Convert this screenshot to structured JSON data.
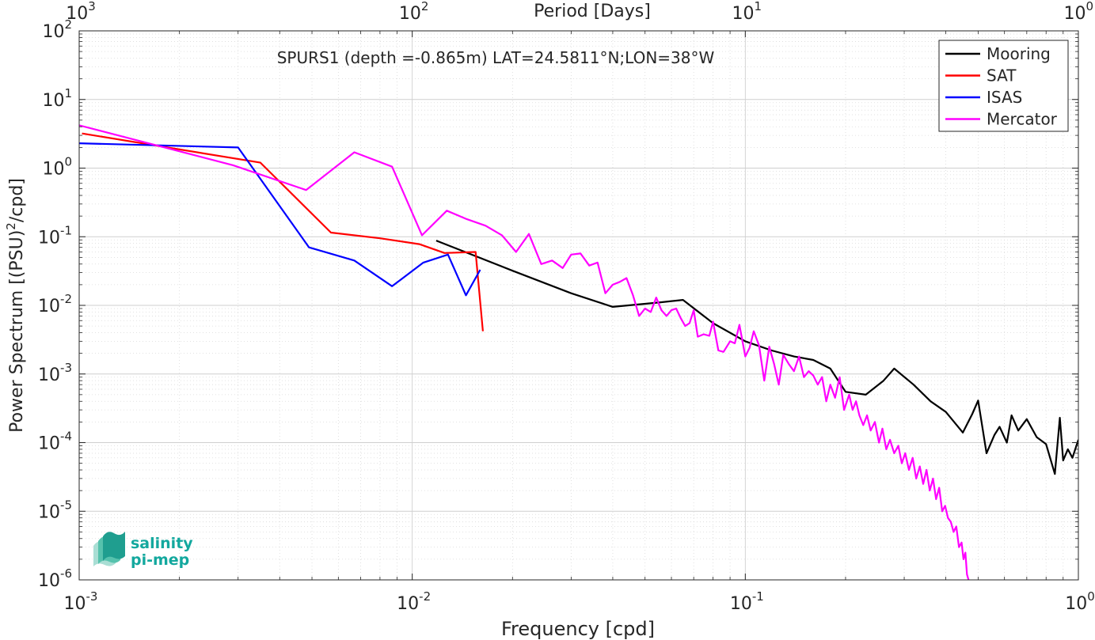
{
  "chart_data": {
    "type": "line",
    "title": "SPURS1 (depth =-0.865m) LAT=24.5811°N;LON=38°W",
    "xlabel": "Frequency [cpd]",
    "ylabel": "Power Spectrum [(PSU)²/cpd]",
    "ylabel_main": "Power Spectrum [(PSU)",
    "ylabel_sup": "2",
    "ylabel_tail": "/cpd]",
    "top_xlabel": "Period [Days]",
    "xscale": "log",
    "yscale": "log",
    "xlim": [
      0.001,
      1
    ],
    "ylim": [
      1e-06,
      100
    ],
    "grid": true,
    "legend_position": "top-right",
    "x_ticks": [
      {
        "value": 0.001,
        "base": "10",
        "exp": "-3"
      },
      {
        "value": 0.01,
        "base": "10",
        "exp": "-2"
      },
      {
        "value": 0.1,
        "base": "10",
        "exp": "-1"
      },
      {
        "value": 1,
        "base": "10",
        "exp": "0"
      }
    ],
    "y_ticks": [
      {
        "value": 1e-06,
        "base": "10",
        "exp": "-6"
      },
      {
        "value": 1e-05,
        "base": "10",
        "exp": "-5"
      },
      {
        "value": 0.0001,
        "base": "10",
        "exp": "-4"
      },
      {
        "value": 0.001,
        "base": "10",
        "exp": "-3"
      },
      {
        "value": 0.01,
        "base": "10",
        "exp": "-2"
      },
      {
        "value": 0.1,
        "base": "10",
        "exp": "-1"
      },
      {
        "value": 1,
        "base": "10",
        "exp": "0"
      },
      {
        "value": 10,
        "base": "10",
        "exp": "1"
      },
      {
        "value": 100,
        "base": "10",
        "exp": "2"
      }
    ],
    "top_ticks": [
      {
        "freq": 0.001,
        "base": "10",
        "exp": "3"
      },
      {
        "freq": 0.01,
        "base": "10",
        "exp": "2"
      },
      {
        "freq": 0.1,
        "base": "10",
        "exp": "1"
      },
      {
        "freq": 1,
        "base": "10",
        "exp": "0"
      }
    ],
    "series": [
      {
        "name": "Mooring",
        "color": "#000000",
        "x": [
          0.0118,
          0.02,
          0.03,
          0.04,
          0.055,
          0.065,
          0.08,
          0.1,
          0.12,
          0.14,
          0.16,
          0.18,
          0.2,
          0.23,
          0.26,
          0.28,
          0.32,
          0.36,
          0.4,
          0.45,
          0.48,
          0.5,
          0.53,
          0.56,
          0.58,
          0.61,
          0.63,
          0.66,
          0.7,
          0.75,
          0.8,
          0.85,
          0.88,
          0.9,
          0.93,
          0.96,
          1.0
        ],
        "y": [
          0.088,
          0.032,
          0.015,
          0.0095,
          0.011,
          0.012,
          0.0055,
          0.003,
          0.0022,
          0.0018,
          0.0016,
          0.0012,
          0.00055,
          0.0005,
          0.0008,
          0.0012,
          0.0007,
          0.0004,
          0.00028,
          0.00014,
          0.00026,
          0.00041,
          7e-05,
          0.00013,
          0.00017,
          0.0001,
          0.00025,
          0.00015,
          0.00022,
          0.00012,
          9.5e-05,
          3.5e-05,
          0.00023,
          5.5e-05,
          8e-05,
          6e-05,
          0.00011
        ]
      },
      {
        "name": "SAT",
        "color": "#ff0000",
        "x": [
          0.00102,
          0.0035,
          0.0057,
          0.008,
          0.0105,
          0.0125,
          0.0155,
          0.0163
        ],
        "y": [
          3.2,
          1.2,
          0.115,
          0.095,
          0.078,
          0.058,
          0.06,
          0.0042
        ]
      },
      {
        "name": "ISAS",
        "color": "#0000ff",
        "x": [
          0.001,
          0.003,
          0.0049,
          0.0067,
          0.0087,
          0.0108,
          0.0128,
          0.0145,
          0.016
        ],
        "y": [
          2.3,
          2.0,
          0.07,
          0.045,
          0.019,
          0.042,
          0.055,
          0.014,
          0.033
        ]
      },
      {
        "name": "Mercator",
        "color": "#ff00ff",
        "x": [
          0.001,
          0.0029,
          0.0048,
          0.0067,
          0.0087,
          0.0107,
          0.0127,
          0.0146,
          0.0166,
          0.0186,
          0.0205,
          0.0224,
          0.0244,
          0.0263,
          0.0283,
          0.03,
          0.032,
          0.034,
          0.036,
          0.038,
          0.04,
          0.042,
          0.044,
          0.046,
          0.048,
          0.05,
          0.052,
          0.054,
          0.056,
          0.058,
          0.06,
          0.062,
          0.064,
          0.066,
          0.068,
          0.07,
          0.072,
          0.075,
          0.078,
          0.08,
          0.083,
          0.086,
          0.09,
          0.093,
          0.096,
          0.1,
          0.103,
          0.106,
          0.11,
          0.114,
          0.118,
          0.122,
          0.126,
          0.13,
          0.135,
          0.14,
          0.145,
          0.15,
          0.155,
          0.16,
          0.165,
          0.17,
          0.175,
          0.18,
          0.186,
          0.192,
          0.198,
          0.205,
          0.21,
          0.215,
          0.22,
          0.226,
          0.232,
          0.238,
          0.245,
          0.252,
          0.258,
          0.265,
          0.272,
          0.28,
          0.288,
          0.295,
          0.302,
          0.31,
          0.318,
          0.326,
          0.334,
          0.342,
          0.35,
          0.358,
          0.366,
          0.374,
          0.382,
          0.39,
          0.398,
          0.406,
          0.414,
          0.422,
          0.43,
          0.438,
          0.446,
          0.452,
          0.458,
          0.463,
          0.468
        ],
        "y": [
          4.2,
          1.1,
          0.48,
          1.7,
          1.05,
          0.105,
          0.24,
          0.18,
          0.145,
          0.105,
          0.06,
          0.11,
          0.04,
          0.045,
          0.035,
          0.055,
          0.057,
          0.038,
          0.042,
          0.015,
          0.02,
          0.022,
          0.025,
          0.014,
          0.007,
          0.009,
          0.008,
          0.013,
          0.0085,
          0.007,
          0.0085,
          0.009,
          0.0065,
          0.005,
          0.0055,
          0.0085,
          0.0035,
          0.0038,
          0.0036,
          0.0058,
          0.0022,
          0.0021,
          0.003,
          0.0028,
          0.0052,
          0.0018,
          0.0024,
          0.0042,
          0.0026,
          0.0008,
          0.0025,
          0.0014,
          0.0007,
          0.0019,
          0.0014,
          0.0011,
          0.0018,
          0.0009,
          0.0011,
          0.00095,
          0.0007,
          0.0009,
          0.0004,
          0.0007,
          0.00045,
          0.0009,
          0.0003,
          0.0005,
          0.0003,
          0.0004,
          0.00025,
          0.00018,
          0.00025,
          0.00015,
          0.0002,
          0.0001,
          0.00016,
          8e-05,
          0.00011,
          7e-05,
          9e-05,
          5e-05,
          7e-05,
          4e-05,
          6e-05,
          3e-05,
          4.5e-05,
          2.5e-05,
          4e-05,
          2e-05,
          3e-05,
          1.5e-05,
          2.2e-05,
          1e-05,
          1.2e-05,
          8e-06,
          7e-06,
          5e-06,
          6e-06,
          3e-06,
          3.5e-06,
          2e-06,
          2.5e-06,
          1.2e-06,
          1e-06
        ]
      }
    ]
  },
  "logo": {
    "line1": "salinity",
    "line2": "pi-mep",
    "color": "#13a89e"
  }
}
